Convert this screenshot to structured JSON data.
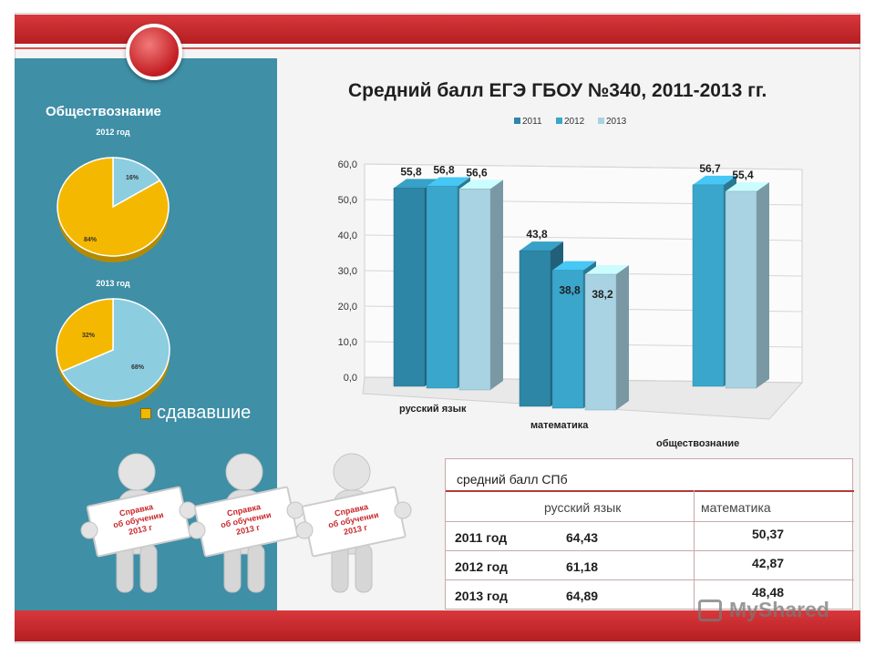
{
  "chart_title": "Средний балл ЕГЭ ГБОУ №340, 2011-2013 гг.",
  "left_panel": {
    "subject": "Обществознание",
    "pie_2012_title": "2012 год",
    "pie_2013_title": "2013 год",
    "legend_label": "сдававшие"
  },
  "colors": {
    "y2011": "#2e86a6",
    "y2012": "#3aa6cc",
    "y2013": "#a9d3e3",
    "pie_yellow": "#f5b800",
    "pie_blue": "#8ccde0",
    "panel": "#3f8fa6",
    "accent_red": "#c8262a"
  },
  "chart_data": [
    {
      "type": "bar",
      "title": "Средний балл ЕГЭ ГБОУ №340, 2011-2013 гг.",
      "categories": [
        "русский язык",
        "математика",
        "обществознание"
      ],
      "series": [
        {
          "name": "2011",
          "values": [
            55.8,
            43.8,
            null
          ]
        },
        {
          "name": "2012",
          "values": [
            56.8,
            38.8,
            56.7
          ]
        },
        {
          "name": "2013",
          "values": [
            56.6,
            38.2,
            55.4
          ]
        }
      ],
      "value_labels": [
        [
          "55,8",
          "43,8",
          ""
        ],
        [
          "56,8",
          "38,8",
          "56,7"
        ],
        [
          "56,6",
          "38,2",
          "55,4"
        ]
      ],
      "y_ticks": [
        "0,0",
        "10,0",
        "20,0",
        "30,0",
        "40,0",
        "50,0",
        "60,0"
      ],
      "ylim": [
        0,
        60
      ],
      "legend": [
        "2011",
        "2012",
        "2013"
      ],
      "grid": true,
      "legend_position": "top"
    },
    {
      "type": "pie",
      "title": "2012 год",
      "slices": [
        {
          "value": 16,
          "label": "16%"
        },
        {
          "value": 84,
          "label": "84%"
        }
      ]
    },
    {
      "type": "pie",
      "title": "2013 год",
      "slices": [
        {
          "value": 68,
          "label": "68%"
        },
        {
          "value": 32,
          "label": "32%"
        }
      ]
    }
  ],
  "table": {
    "title": "средний балл СПб",
    "headers": [
      "",
      "русский язык",
      "математика"
    ],
    "rows": [
      {
        "year": "2011 год",
        "rus": "64,43",
        "math": "50,37"
      },
      {
        "year": "2012 год",
        "rus": "61,18",
        "math": "42,87"
      },
      {
        "year": "2013 год",
        "rus": "64,89",
        "math": "48,48"
      }
    ]
  },
  "figures": {
    "sign_lines": [
      "Справка",
      "об обучении",
      "2013 г"
    ]
  },
  "watermark": "MyShared"
}
